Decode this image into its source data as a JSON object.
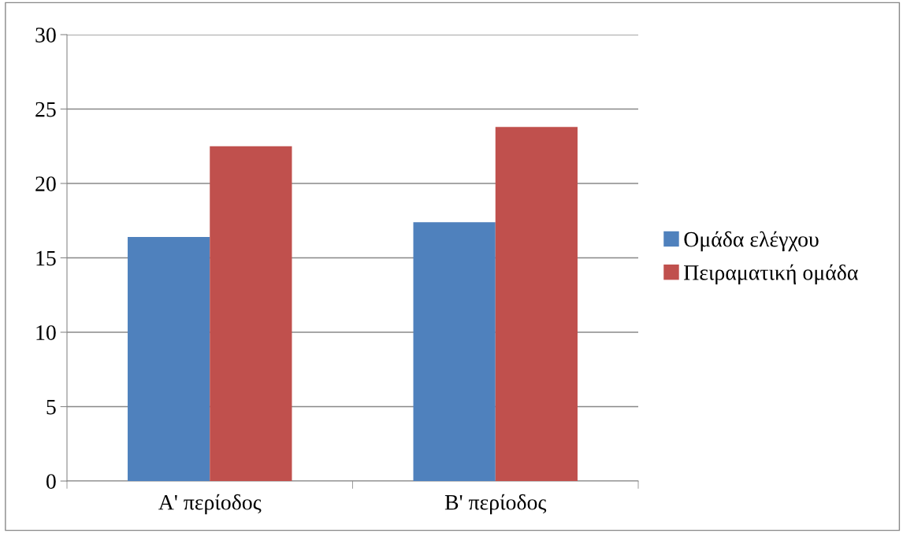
{
  "chart_data": {
    "type": "bar",
    "categories": [
      "A' περίοδος",
      "B' περίοδος"
    ],
    "series": [
      {
        "name": "Ομάδα ελέγχου",
        "color": "#4f81bd",
        "values": [
          16.4,
          17.4
        ]
      },
      {
        "name": "Πειραματική ομάδα",
        "color": "#c0504d",
        "values": [
          22.5,
          23.8
        ]
      }
    ],
    "ylim": [
      0,
      30
    ],
    "yticks": [
      0,
      5,
      10,
      15,
      20,
      25,
      30
    ],
    "grid": "y",
    "legend": "right"
  }
}
